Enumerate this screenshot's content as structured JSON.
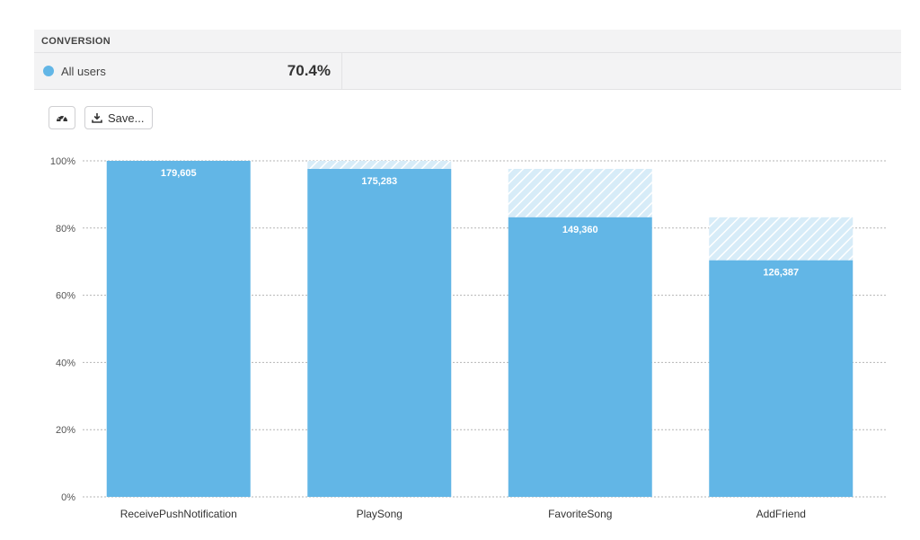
{
  "conversion": {
    "header": "CONVERSION",
    "segment_label": "All users",
    "segment_value": "70.4%",
    "segment_color": "#62b6e6"
  },
  "toolbar": {
    "dashboard_icon": "speedometer-icon",
    "save_icon": "download-icon",
    "save_label": "Save..."
  },
  "chart_data": {
    "type": "bar",
    "categories": [
      "ReceivePushNotification",
      "PlaySong",
      "FavoriteSong",
      "AddFriend"
    ],
    "values": [
      100,
      97.6,
      83.2,
      70.4
    ],
    "previous_step": [
      100,
      100,
      97.6,
      83.2
    ],
    "data_labels": [
      "179,605",
      "175,283",
      "149,360",
      "126,387"
    ],
    "ylim": [
      0,
      100
    ],
    "yticks": [
      0,
      20,
      40,
      60,
      80,
      100
    ],
    "ytick_labels": [
      "0%",
      "20%",
      "40%",
      "60%",
      "80%",
      "100%"
    ],
    "grid": true,
    "bar_color": "#62b6e6",
    "dropoff_color": "#d7ecf8"
  }
}
